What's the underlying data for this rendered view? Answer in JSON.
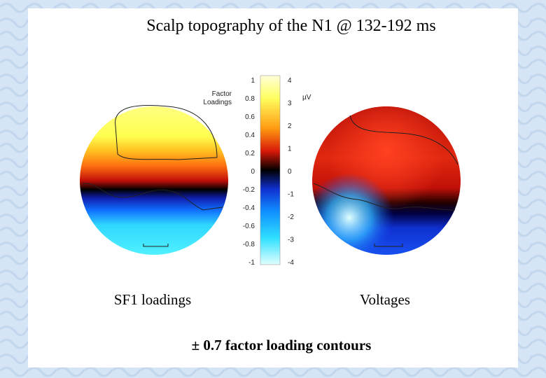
{
  "title": "Scalp topography of the N1 @ 132-192 ms",
  "colorbar": {
    "left_title": [
      "Factor",
      "Loadings"
    ],
    "left_ticks": [
      "1",
      "0.8",
      "0.6",
      "0.4",
      "0.2",
      "0",
      "-0.2",
      "-0.4",
      "-0.6",
      "-0.8",
      "-1"
    ],
    "right_title": "µV",
    "right_ticks": [
      "4",
      "3",
      "2",
      "1",
      "0",
      "-1",
      "-2",
      "-3",
      "-4"
    ]
  },
  "panels": [
    {
      "label": "SF1 loadings"
    },
    {
      "label": "Voltages"
    }
  ],
  "footer": "± 0.7 factor loading contours"
}
